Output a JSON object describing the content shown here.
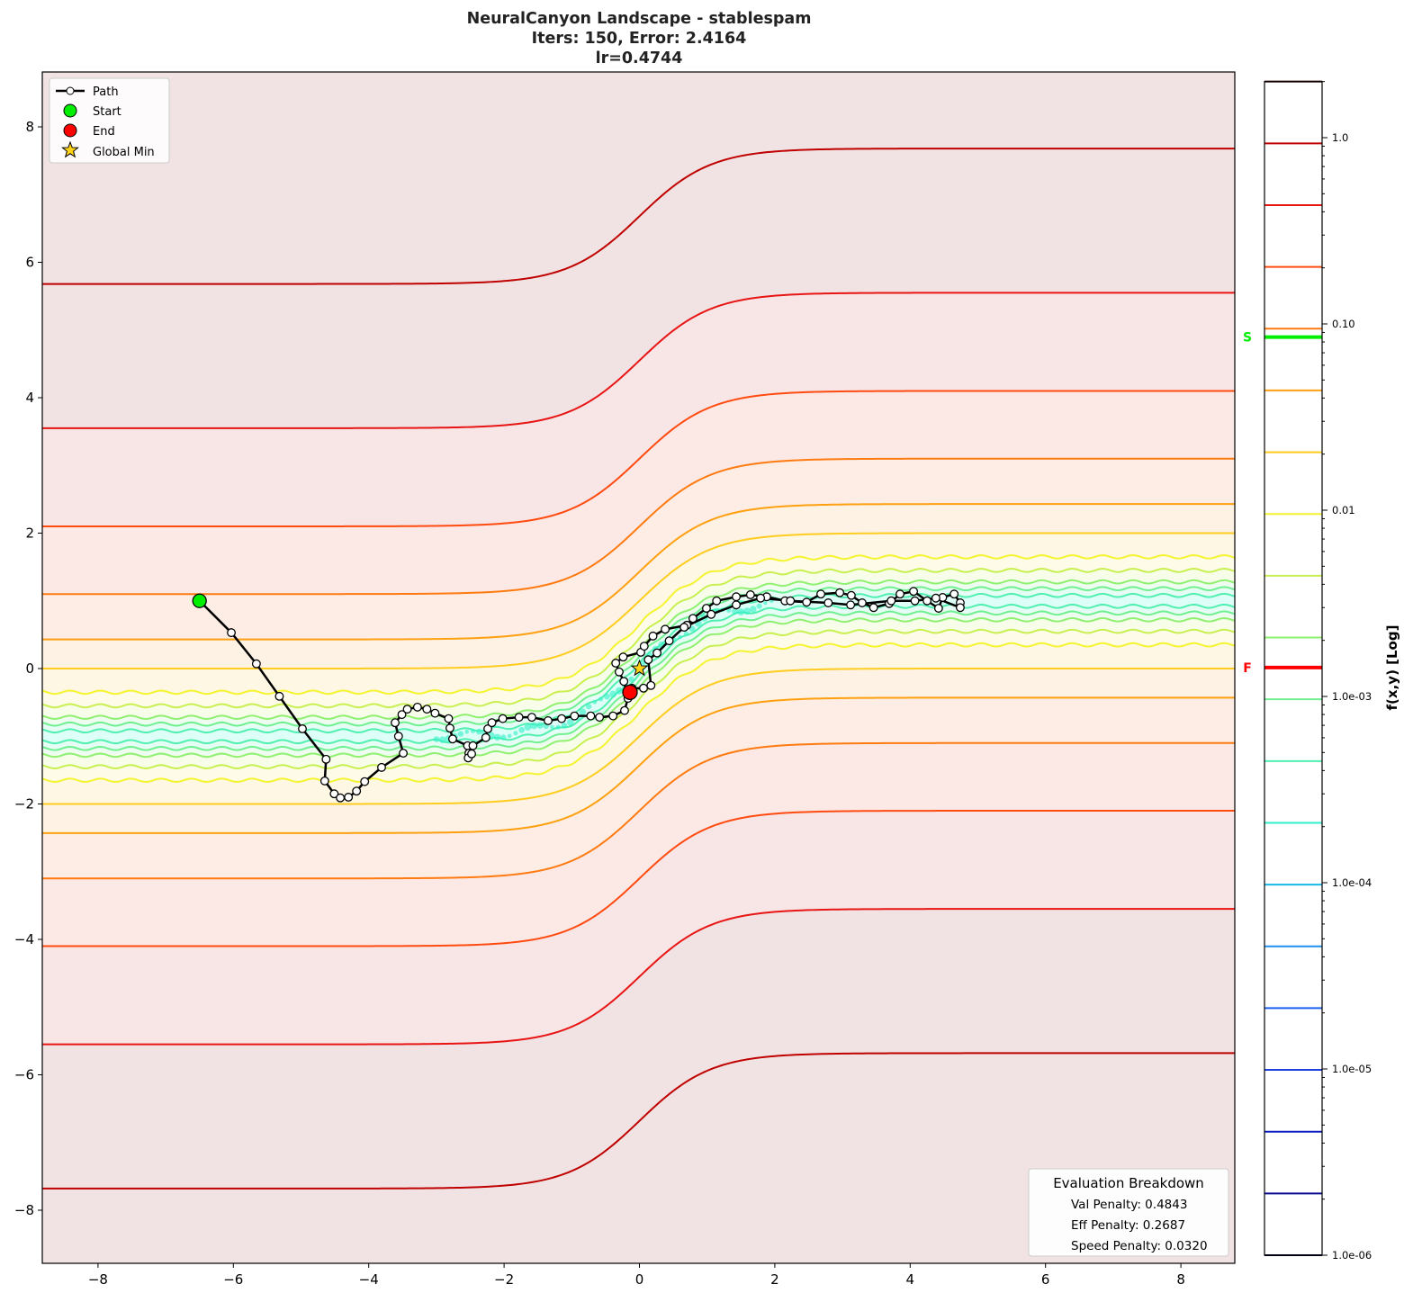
{
  "chart_data": {
    "type": "contour",
    "title": [
      "NeuralCanyon Landscape - stablespam",
      "Iters: 150, Error: 2.4164",
      "lr=0.4744"
    ],
    "xlim": [
      -8.8,
      8.8
    ],
    "ylim": [
      -8.8,
      8.8
    ],
    "xticks": [
      -8,
      -6,
      -4,
      -2,
      0,
      2,
      4,
      6,
      8
    ],
    "yticks": [
      -8,
      -6,
      -4,
      -2,
      0,
      2,
      4,
      6,
      8
    ],
    "xtick_labels": [
      "−8",
      "−6",
      "−4",
      "−2",
      "0",
      "2",
      "4",
      "6",
      "8"
    ],
    "ytick_labels": [
      "−8",
      "−6",
      "−4",
      "−2",
      "0",
      "2",
      "4",
      "6",
      "8"
    ],
    "grid": false,
    "legend": {
      "placement": "top-left",
      "entries": [
        {
          "label": "Path",
          "color": "#000000",
          "marker": "white-circle-line"
        },
        {
          "label": "Start",
          "color": "#00ee00",
          "marker": "circle"
        },
        {
          "label": "End",
          "color": "#ff0000",
          "marker": "circle"
        },
        {
          "label": "Global Min",
          "color": "#ffd21a",
          "marker": "star"
        }
      ]
    },
    "start": [
      -6.5,
      1.0
    ],
    "end": [
      -0.14,
      -0.35
    ],
    "global_min": [
      0.0,
      0.0
    ],
    "path": [
      [
        -6.5,
        1.0
      ],
      [
        -6.03,
        0.53
      ],
      [
        -5.66,
        0.07
      ],
      [
        -5.32,
        -0.41
      ],
      [
        -4.98,
        -0.89
      ],
      [
        -4.63,
        -1.34
      ],
      [
        -4.65,
        -1.66
      ],
      [
        -4.51,
        -1.85
      ],
      [
        -4.42,
        -1.91
      ],
      [
        -4.3,
        -1.9
      ],
      [
        -4.18,
        -1.81
      ],
      [
        -4.06,
        -1.67
      ],
      [
        -3.81,
        -1.46
      ],
      [
        -3.49,
        -1.25
      ],
      [
        -3.56,
        -1.0
      ],
      [
        -3.61,
        -0.8
      ],
      [
        -3.51,
        -0.68
      ],
      [
        -3.43,
        -0.6
      ],
      [
        -3.28,
        -0.57
      ],
      [
        -3.14,
        -0.6
      ],
      [
        -3.02,
        -0.66
      ],
      [
        -2.82,
        -0.74
      ],
      [
        -2.8,
        -0.88
      ],
      [
        -2.76,
        -1.04
      ],
      [
        -2.54,
        -1.14
      ],
      [
        -2.52,
        -1.25
      ],
      [
        -2.53,
        -1.32
      ],
      [
        -2.48,
        -1.26
      ],
      [
        -2.46,
        -1.14
      ],
      [
        -2.27,
        -1.02
      ],
      [
        -2.24,
        -0.89
      ],
      [
        -2.18,
        -0.8
      ],
      [
        -2.02,
        -0.74
      ],
      [
        -1.78,
        -0.72
      ],
      [
        -1.59,
        -0.72
      ],
      [
        -1.35,
        -0.77
      ],
      [
        -1.15,
        -0.74
      ],
      [
        -0.96,
        -0.7
      ],
      [
        -0.72,
        -0.7
      ],
      [
        -0.59,
        -0.72
      ],
      [
        -0.39,
        -0.7
      ],
      [
        -0.22,
        -0.62
      ],
      [
        -0.17,
        -0.44
      ],
      [
        -0.23,
        -0.19
      ],
      [
        -0.3,
        -0.05
      ],
      [
        -0.35,
        0.08
      ],
      [
        -0.24,
        0.17
      ],
      [
        0.02,
        0.24
      ],
      [
        0.07,
        0.33
      ],
      [
        0.2,
        0.48
      ],
      [
        0.38,
        0.58
      ],
      [
        0.7,
        0.64
      ],
      [
        0.79,
        0.74
      ],
      [
        0.99,
        0.89
      ],
      [
        1.14,
        1.0
      ],
      [
        1.43,
        1.06
      ],
      [
        1.64,
        1.09
      ],
      [
        1.88,
        1.06
      ],
      [
        2.15,
        1.0
      ],
      [
        2.47,
        0.98
      ],
      [
        2.68,
        1.1
      ],
      [
        2.96,
        1.12
      ],
      [
        3.13,
        1.08
      ],
      [
        3.29,
        0.97
      ],
      [
        3.46,
        0.9
      ],
      [
        3.69,
        0.96
      ],
      [
        3.85,
        1.1
      ],
      [
        4.05,
        1.14
      ],
      [
        4.25,
        1.0
      ],
      [
        4.42,
        0.89
      ],
      [
        4.48,
        1.05
      ],
      [
        4.65,
        1.1
      ],
      [
        4.74,
        0.97
      ],
      [
        4.74,
        0.9
      ],
      [
        4.38,
        1.04
      ],
      [
        4.07,
        1.0
      ],
      [
        3.72,
        1.0
      ],
      [
        3.12,
        0.94
      ],
      [
        2.79,
        0.97
      ],
      [
        2.23,
        1.0
      ],
      [
        1.79,
        1.04
      ],
      [
        1.43,
        0.94
      ],
      [
        1.06,
        0.8
      ],
      [
        0.66,
        0.61
      ],
      [
        0.44,
        0.41
      ],
      [
        0.26,
        0.23
      ],
      [
        0.13,
        0.13
      ],
      [
        0.17,
        -0.25
      ],
      [
        0.06,
        -0.29
      ],
      [
        -0.11,
        -0.29
      ],
      [
        -0.14,
        -0.35
      ]
    ],
    "colorbar": {
      "label": "f(x,y) [Log]",
      "scale": "log",
      "range": [
        1e-06,
        2.0
      ],
      "ticks": [
        1.0,
        0.1,
        0.01,
        0.001,
        0.0001,
        1e-05,
        1e-06
      ],
      "tick_labels": [
        "1.0",
        "0.10",
        "0.01",
        "1.0e-03",
        "1.0e-04",
        "1.0e-05",
        "1.0e-06"
      ],
      "level_colors": [
        "#3a0000",
        "#c00000",
        "#e81515",
        "#ff4a10",
        "#ff7a10",
        "#ffa010",
        "#ffcc20",
        "#f4f430",
        "#c8f050",
        "#90f070",
        "#70f090",
        "#50f0b0",
        "#30f0d0",
        "#18b8e8",
        "#2090f0",
        "#1a60f0",
        "#1a40e0",
        "#1020c0",
        "#0a0a90",
        "#000030"
      ],
      "markers": [
        {
          "label": "S",
          "value": 0.085,
          "color": "#00ee00"
        },
        {
          "label": "F",
          "value": 0.00143,
          "color": "#ff0000"
        }
      ]
    },
    "evaluation": {
      "title": "Evaluation Breakdown",
      "lines": [
        "Val Penalty: 0.4843",
        "Eff Penalty: 0.2687",
        "Speed Penalty: 0.0320"
      ]
    }
  }
}
